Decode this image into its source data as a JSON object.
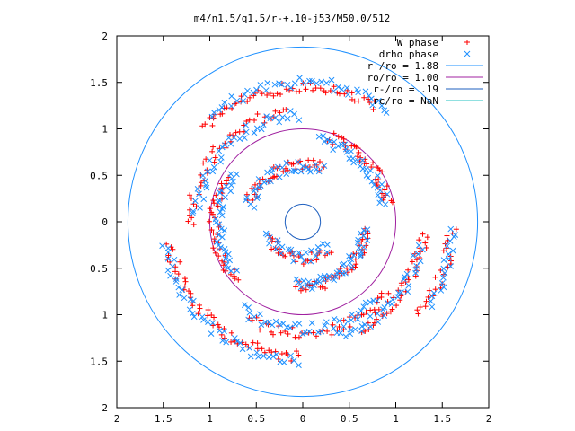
{
  "chart_data": {
    "type": "scatter",
    "title": "m4/n1.5/q1.5/r-+.10-j53/M50.0/512",
    "xlabel": "",
    "ylabel": "",
    "xlim": [
      -2,
      2
    ],
    "ylim": [
      -2,
      2
    ],
    "grid": false,
    "legend_position": "top-right",
    "x_ticks": [
      "2",
      "1.5",
      "1",
      "0.5",
      "0",
      "0.5",
      "1",
      "1.5",
      "2"
    ],
    "y_ticks": [
      "2",
      "1.5",
      "1",
      "0.5",
      "0",
      "0.5",
      "1",
      "1.5",
      "2"
    ],
    "series": [
      {
        "name": "W phase",
        "marker": "plus",
        "color": "#ff0000",
        "rings": [
          {
            "r": 1.45,
            "a0": 1.0,
            "a1": 2.4,
            "n": 55
          },
          {
            "r": 1.45,
            "a0": 3.3,
            "a1": 4.7,
            "n": 55
          },
          {
            "r": 1.3,
            "a0": 5.2,
            "a1": 6.2,
            "n": 40
          },
          {
            "r": 1.2,
            "a0": 1.7,
            "a1": 3.2,
            "n": 45
          },
          {
            "r": 1.2,
            "a0": 4.2,
            "a1": 5.6,
            "n": 45
          },
          {
            "r": 0.95,
            "a0": 0.2,
            "a1": 1.3,
            "n": 40
          },
          {
            "r": 0.95,
            "a0": 2.6,
            "a1": 3.9,
            "n": 40
          },
          {
            "r": 0.7,
            "a0": 4.6,
            "a1": 6.2,
            "n": 45
          },
          {
            "r": 0.62,
            "a0": 1.2,
            "a1": 2.8,
            "n": 40
          },
          {
            "r": 0.4,
            "a0": 3.5,
            "a1": 5.5,
            "n": 30
          },
          {
            "r": 1.6,
            "a0": 5.6,
            "a1": 6.25,
            "n": 25
          }
        ]
      },
      {
        "name": "drho phase",
        "marker": "cross",
        "color": "#1e90ff",
        "rings": [
          {
            "r": 1.5,
            "a0": 0.9,
            "a1": 2.3,
            "n": 45
          },
          {
            "r": 1.5,
            "a0": 3.3,
            "a1": 4.7,
            "n": 45
          },
          {
            "r": 1.3,
            "a0": 5.0,
            "a1": 6.1,
            "n": 35
          },
          {
            "r": 1.15,
            "a0": 1.6,
            "a1": 3.1,
            "n": 40
          },
          {
            "r": 1.15,
            "a0": 4.1,
            "a1": 5.5,
            "n": 40
          },
          {
            "r": 0.9,
            "a0": 0.2,
            "a1": 1.4,
            "n": 35
          },
          {
            "r": 0.9,
            "a0": 2.5,
            "a1": 3.8,
            "n": 35
          },
          {
            "r": 0.68,
            "a0": 4.6,
            "a1": 6.2,
            "n": 40
          },
          {
            "r": 0.6,
            "a0": 1.2,
            "a1": 2.9,
            "n": 35
          },
          {
            "r": 0.38,
            "a0": 3.4,
            "a1": 5.6,
            "n": 25
          },
          {
            "r": 1.62,
            "a0": 5.7,
            "a1": 6.25,
            "n": 20
          }
        ]
      },
      {
        "name": "r+/ro = 1.88",
        "type": "circle",
        "r": 1.88,
        "color": "#1e90ff"
      },
      {
        "name": "ro/ro = 1.00",
        "type": "circle",
        "r": 1.0,
        "color": "#a020a0"
      },
      {
        "name": "r-/ro = .19",
        "type": "circle",
        "r": 0.19,
        "color": "#1e5fbf"
      },
      {
        "name": "rc/ro = NaN",
        "type": "circle",
        "r": null,
        "color": "#20c0c0"
      }
    ]
  }
}
